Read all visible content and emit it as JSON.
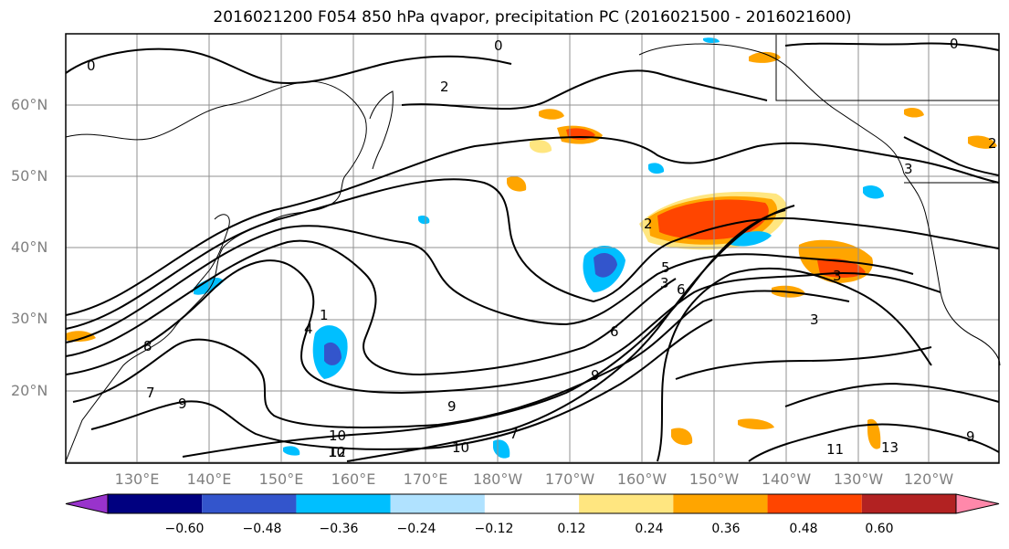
{
  "title": "2016021200 F054 850 hPa qvapor, precipitation PC (2016021500 - 2016021600)",
  "lat_labels": [
    "60°N",
    "50°N",
    "40°N",
    "30°N",
    "20°N"
  ],
  "lon_labels": [
    "130°E",
    "140°E",
    "150°E",
    "160°E",
    "170°E",
    "180°W",
    "170°W",
    "160°W",
    "150°W",
    "140°W",
    "130°W",
    "120°W"
  ],
  "colorbar": {
    "ticks": [
      "−0.60",
      "−0.48",
      "−0.36",
      "−0.24",
      "−0.12",
      "0.12",
      "0.24",
      "0.36",
      "0.48",
      "0.60"
    ],
    "colors": [
      "#9933cc",
      "#000080",
      "#3355cc",
      "#00bfff",
      "#b0e2ff",
      "#ffffff",
      "#ffe680",
      "#ffa500",
      "#ff4500",
      "#b22222",
      "#ff88aa"
    ]
  },
  "contour_labels": [
    "0",
    "0",
    "0",
    "2",
    "2",
    "2",
    "3",
    "3",
    "3",
    "3",
    "4",
    "5",
    "6",
    "6",
    "7",
    "7",
    "8",
    "9",
    "9",
    "9",
    "9",
    "10",
    "10",
    "10",
    "11",
    "12",
    "13",
    "1"
  ],
  "colors": {
    "grid": "#909090",
    "contour": "#000000",
    "coast": "#000000"
  }
}
